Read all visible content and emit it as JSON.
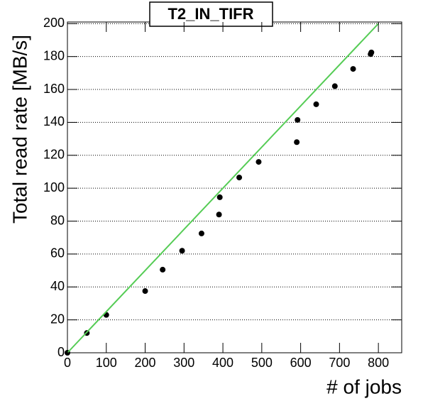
{
  "chart_data": {
    "type": "scatter",
    "title": "T2_IN_TIFR",
    "xlabel": "# of jobs",
    "ylabel": "Total read rate [MB/s]",
    "xlim": [
      0,
      860
    ],
    "ylim": [
      0,
      201
    ],
    "xticks": [
      0,
      100,
      200,
      300,
      400,
      500,
      600,
      700,
      800
    ],
    "yticks": [
      0,
      20,
      40,
      60,
      80,
      100,
      120,
      140,
      160,
      180,
      200
    ],
    "grid": "y",
    "series": [
      {
        "type": "scatter",
        "color": "#000000",
        "x": [
          0,
          50,
          100,
          200,
          245,
          295,
          345,
          390,
          392,
          442,
          492,
          590,
          592,
          640,
          688,
          735,
          780,
          782
        ],
        "y": [
          0,
          12,
          23,
          37.5,
          50.5,
          62,
          72.5,
          84,
          94.5,
          106.5,
          116,
          128,
          141.5,
          151,
          162,
          172.5,
          181.5,
          182.5
        ]
      },
      {
        "type": "line",
        "color": "#55cc55",
        "x": [
          0,
          800
        ],
        "y": [
          0,
          200
        ]
      }
    ]
  }
}
